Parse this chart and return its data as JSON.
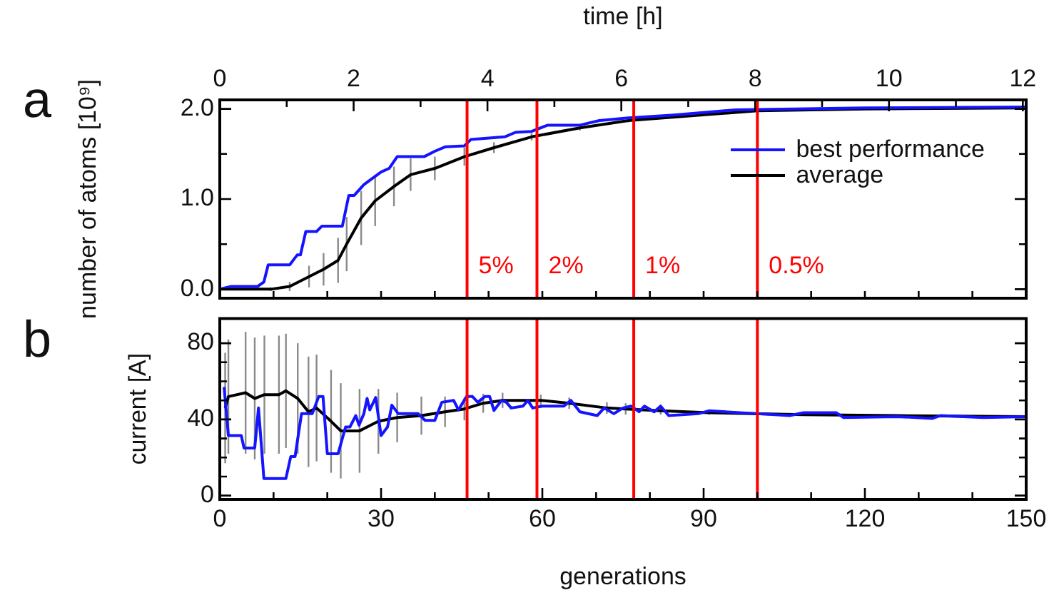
{
  "chart_data": [
    {
      "type": "line",
      "xlabel": null,
      "x2label": "time [h]",
      "ylabel": "number of atoms [10⁹]",
      "annotations": [
        "a",
        {
          "text": "5%",
          "x": 46,
          "y": 0.25
        },
        {
          "text": "2%",
          "x": 59,
          "y": 0.25
        },
        {
          "text": "1%",
          "x": 77,
          "y": 0.25
        },
        {
          "text": "0.5%",
          "x": 100,
          "y": 0.25
        }
      ],
      "xlim": [
        0,
        150
      ],
      "xticks": [
        {
          "value": 0,
          "label": null
        },
        {
          "value": 10,
          "label": null
        },
        {
          "value": 20,
          "label": null
        },
        {
          "value": 30,
          "label": null
        },
        {
          "value": 40,
          "label": null
        },
        {
          "value": 50,
          "label": null
        },
        {
          "value": 60,
          "label": null
        },
        {
          "value": 70,
          "label": null
        },
        {
          "value": 80,
          "label": null
        },
        {
          "value": 90,
          "label": null
        },
        {
          "value": 100,
          "label": null
        },
        {
          "value": 110,
          "label": null
        },
        {
          "value": 120,
          "label": null
        },
        {
          "value": 130,
          "label": null
        },
        {
          "value": 140,
          "label": null
        },
        {
          "value": 150,
          "label": null
        }
      ],
      "x2lim": [
        0,
        12.05
      ],
      "x2ticks": [
        0,
        {
          "value": 1,
          "label": null
        },
        2,
        {
          "value": 3,
          "label": null
        },
        4,
        {
          "value": 5,
          "label": null
        },
        6,
        {
          "value": 7,
          "label": null
        },
        8,
        {
          "value": 9,
          "label": null
        },
        10,
        {
          "value": 11,
          "label": null
        },
        12
      ],
      "ylim": [
        -0.1,
        2.1
      ],
      "yticks": [
        {
          "value": 0,
          "label": "0.0"
        },
        {
          "value": 0.5,
          "label": null
        },
        {
          "value": 1,
          "label": "1.0"
        },
        {
          "value": 1.5,
          "label": null
        },
        {
          "value": 2,
          "label": "2.0"
        }
      ],
      "tick_labels": "y",
      "legend": "right",
      "marker": "none",
      "ref_lines": [
        {
          "axis": "x",
          "value": 46,
          "color": "#ff0000"
        },
        {
          "axis": "x",
          "value": 59,
          "color": "#ff0000"
        },
        {
          "axis": "x",
          "value": 77,
          "color": "#ff0000"
        },
        {
          "axis": "x",
          "value": 100,
          "color": "#ff0000"
        }
      ],
      "series": [
        {
          "name": "best performance",
          "color": "#1414ff",
          "x": [
            0,
            2,
            7,
            8.2,
            9,
            13,
            14.4,
            15,
            16,
            18,
            19,
            22.8,
            24,
            25,
            26.8,
            30,
            31.5,
            33,
            38,
            40,
            42,
            45.5,
            46.7,
            53,
            55,
            58,
            61,
            67,
            70.6,
            76,
            84,
            96,
            120,
            150
          ],
          "values": [
            0,
            0.03,
            0.03,
            0.08,
            0.27,
            0.27,
            0.38,
            0.38,
            0.64,
            0.64,
            0.7,
            0.7,
            1.04,
            1.04,
            1.16,
            1.3,
            1.34,
            1.47,
            1.47,
            1.53,
            1.58,
            1.59,
            1.66,
            1.69,
            1.74,
            1.75,
            1.82,
            1.82,
            1.87,
            1.9,
            1.93,
            1.99,
            2.01,
            2.02
          ]
        },
        {
          "name": "average",
          "color": "#000000",
          "x": [
            0,
            9.5,
            13,
            16.6,
            19.3,
            22,
            23.6,
            26.3,
            28.9,
            32.4,
            35.5,
            40,
            45.5,
            51,
            58,
            67,
            76,
            100,
            120,
            150
          ],
          "values": [
            0,
            0,
            0.03,
            0.14,
            0.22,
            0.32,
            0.5,
            0.79,
            0.98,
            1.14,
            1.27,
            1.34,
            1.47,
            1.57,
            1.69,
            1.79,
            1.87,
            1.98,
            2,
            2.01
          ],
          "errors": [
            0,
            0.02,
            0.05,
            0.12,
            0.18,
            0.25,
            0.3,
            0.3,
            0.28,
            0.22,
            0.18,
            0.13,
            0.1,
            0.06,
            0.04,
            0.03,
            0.02,
            0.01,
            0.01,
            0.01
          ]
        }
      ]
    },
    {
      "type": "line",
      "xlabel": "generations",
      "ylabel": "current [A]",
      "annotations": [
        "b"
      ],
      "xlim": [
        0,
        150
      ],
      "xticks": [
        0,
        {
          "value": 10,
          "label": null
        },
        {
          "value": 20,
          "label": null
        },
        30,
        {
          "value": 40,
          "label": null
        },
        {
          "value": 50,
          "label": null
        },
        60,
        {
          "value": 70,
          "label": null
        },
        {
          "value": 80,
          "label": null
        },
        90,
        {
          "value": 100,
          "label": null
        },
        {
          "value": 110,
          "label": null
        },
        120,
        {
          "value": 130,
          "label": null
        },
        {
          "value": 140,
          "label": null
        },
        150
      ],
      "ylim": [
        -2,
        93
      ],
      "yticks": [
        0,
        {
          "value": 10,
          "label": null
        },
        {
          "value": 20,
          "label": null
        },
        {
          "value": 30,
          "label": null
        },
        40,
        {
          "value": 50,
          "label": null
        },
        {
          "value": 60,
          "label": null
        },
        {
          "value": 70,
          "label": null
        },
        80
      ],
      "marker": "none",
      "ref_lines": [
        {
          "axis": "x",
          "value": 46,
          "color": "#ff0000"
        },
        {
          "axis": "x",
          "value": 59,
          "color": "#ff0000"
        },
        {
          "axis": "x",
          "value": 77,
          "color": "#ff0000"
        },
        {
          "axis": "x",
          "value": 100,
          "color": "#ff0000"
        }
      ],
      "series": [
        {
          "color": "#1414ff",
          "x": [
            0.8,
            1.6,
            4,
            4.5,
            6.5,
            7.2,
            8.2,
            12.3,
            13.2,
            14,
            15.2,
            17.2,
            18.4,
            19.2,
            20,
            22,
            23.4,
            24.2,
            25.3,
            25.9,
            26.8,
            27.4,
            27.9,
            29,
            30,
            31.2,
            32,
            33.2,
            36.9,
            38.2,
            40,
            41.3,
            43.5,
            44.4,
            45.9,
            47,
            48,
            49.3,
            50.2,
            51,
            52.4,
            53.3,
            54.2,
            56.4,
            57.3,
            58.2,
            60,
            64,
            65.3,
            67,
            70.2,
            71.5,
            73.3,
            75,
            76.5,
            78,
            79,
            80.8,
            82,
            83.5,
            89,
            91,
            100,
            106,
            108.6,
            114.7,
            116,
            126,
            132.5,
            134,
            142,
            150
          ],
          "values": [
            57,
            31.5,
            31.5,
            25,
            25,
            46,
            9,
            9,
            20.5,
            20.5,
            43,
            43,
            52,
            52,
            22,
            22,
            36,
            36,
            42,
            37,
            43,
            51,
            45,
            51.5,
            31.5,
            36,
            47.5,
            43,
            43,
            39.5,
            39.5,
            49,
            50,
            45,
            52,
            52,
            49,
            52,
            52,
            44.7,
            50,
            49,
            46,
            47,
            50,
            46,
            47,
            47,
            50,
            44,
            42,
            46,
            43,
            46,
            47,
            44,
            47,
            44,
            47,
            42,
            43,
            44.5,
            43,
            42,
            43.5,
            43.5,
            41,
            41.5,
            40.5,
            42,
            41,
            41.5
          ]
        },
        {
          "color": "#000000",
          "x": [
            1,
            1.6,
            4.8,
            6.5,
            8.3,
            11,
            12.3,
            14.5,
            16.5,
            18,
            20.7,
            22.5,
            26,
            29.5,
            33,
            37.5,
            41.9,
            45.5,
            49,
            52.6,
            59.7,
            65,
            72,
            75.5,
            82,
            91,
            108.6,
            126,
            150
          ],
          "values": [
            46,
            52,
            54,
            51,
            53,
            53,
            55,
            51,
            44,
            46,
            39,
            34,
            34,
            39,
            41,
            42,
            44,
            45.5,
            48.5,
            50,
            50,
            48.5,
            46,
            45.5,
            44.5,
            43.5,
            42.5,
            42,
            41.5
          ],
          "errors": [
            29,
            30,
            32,
            32,
            31,
            31,
            30,
            29,
            29,
            28,
            27,
            25,
            22,
            17,
            13,
            10,
            8,
            6,
            5,
            4,
            3,
            3,
            3,
            3,
            2,
            1,
            0.5,
            0.5,
            0.5
          ]
        }
      ]
    }
  ]
}
